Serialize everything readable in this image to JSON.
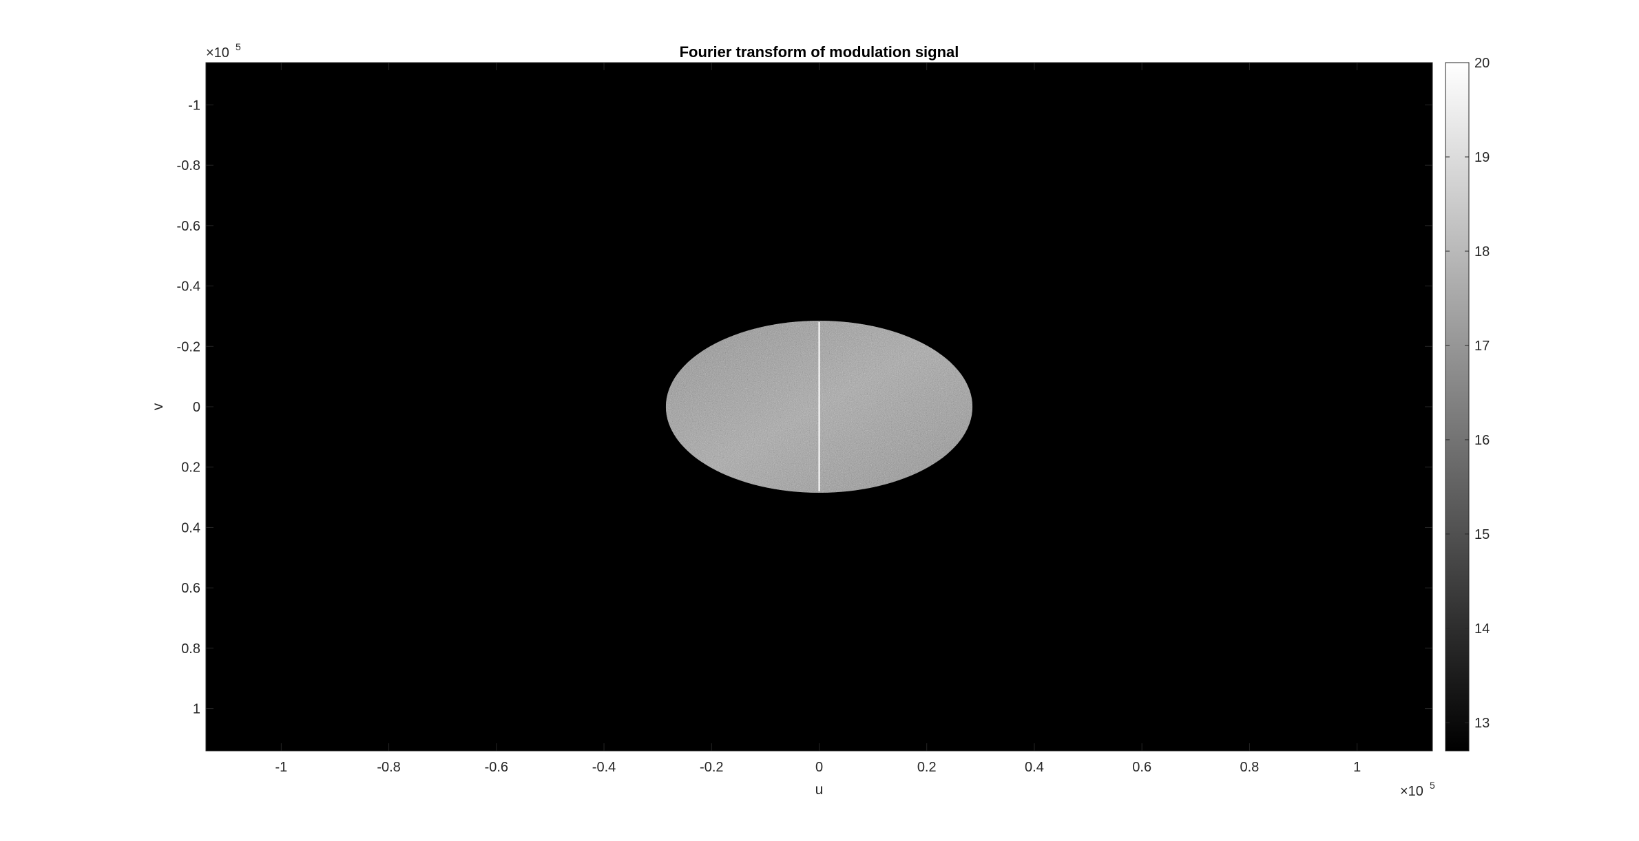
{
  "chart_data": {
    "type": "heatmap",
    "title": "Fourier transform of modulation signal",
    "xlabel": "u",
    "ylabel": "v",
    "x_exponent": {
      "prefix": "×10",
      "power": "5"
    },
    "y_exponent": {
      "prefix": "×10",
      "power": "5"
    },
    "xlim": [
      -1.14,
      1.14
    ],
    "ylim": [
      -1.14,
      1.14
    ],
    "y_direction": "reverse",
    "x_ticks": [
      -1,
      -0.8,
      -0.6,
      -0.4,
      -0.2,
      0,
      0.2,
      0.4,
      0.6,
      0.8,
      1
    ],
    "x_tick_labels": [
      "-1",
      "-0.8",
      "-0.6",
      "-0.4",
      "-0.2",
      "0",
      "0.2",
      "0.4",
      "0.6",
      "0.8",
      "1"
    ],
    "y_ticks": [
      -1,
      -0.8,
      -0.6,
      -0.4,
      -0.2,
      0,
      0.2,
      0.4,
      0.6,
      0.8,
      1
    ],
    "y_tick_labels": [
      "-1",
      "-0.8",
      "-0.6",
      "-0.4",
      "-0.2",
      "0",
      "0.2",
      "0.4",
      "0.6",
      "0.8",
      "1"
    ],
    "colormap": "gray",
    "clim": [
      12.7,
      20
    ],
    "colorbar_ticks": [
      13,
      14,
      15,
      16,
      17,
      18,
      19,
      20
    ],
    "colorbar_tick_labels": [
      "13",
      "14",
      "15",
      "16",
      "17",
      "18",
      "19",
      "20"
    ],
    "background_value": 12.7,
    "region": {
      "shape": "disk",
      "center": [
        0,
        0
      ],
      "radius": 0.285,
      "mean_value": 17.5,
      "central_column_value": 20
    }
  },
  "colors": {
    "axes_background": "#000000",
    "figure_background": "#ffffff",
    "tick_color": "#262626",
    "text_color": "#262626"
  }
}
